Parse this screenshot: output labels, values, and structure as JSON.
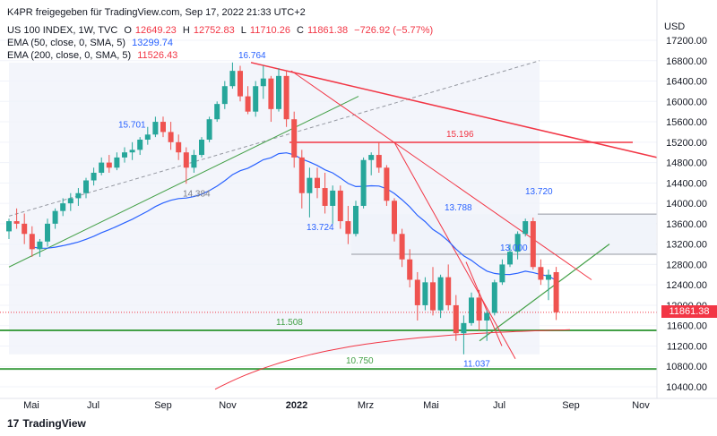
{
  "header": {
    "publisher_line": "K4PR freigegeben für TradingView.com, Sep 17, 2022 21:33 UTC+2",
    "symbol": "US 100 INDEX, 1W, TVC",
    "ohlc": {
      "o_label": "O",
      "o": "12649.23",
      "h_label": "H",
      "h": "12752.83",
      "l_label": "L",
      "l": "11710.26",
      "c_label": "C",
      "c": "11861.38",
      "change": "−726.92 (−5.77%)"
    },
    "ema50": {
      "label": "EMA (50, close, 0, SMA, 5)",
      "value": "13299.74"
    },
    "ema200": {
      "label": "EMA (200, close, 0, SMA, 5)",
      "value": "11526.43"
    }
  },
  "brand": {
    "logo": "17",
    "name": "TradingView"
  },
  "price_axis": {
    "currency": "USD",
    "labels": [
      "17200.00",
      "16800.00",
      "16400.00",
      "16000.00",
      "15600.00",
      "15200.00",
      "14800.00",
      "14400.00",
      "14000.00",
      "13600.00",
      "13200.00",
      "12800.00",
      "12400.00",
      "12000.00",
      "11600.00",
      "11200.00",
      "10800.00",
      "10400.00"
    ],
    "last_price": "11861.38"
  },
  "time_axis": {
    "labels": [
      "Mai",
      "Jul",
      "Sep",
      "Nov",
      "2022",
      "Mrz",
      "Mai",
      "Jul",
      "Sep",
      "Nov"
    ]
  },
  "annotations": {
    "h1": "16.764",
    "h2": "15.701",
    "h3": "14.384",
    "h4": "15.196",
    "h5": "13.724",
    "h6": "13.788",
    "h7": "13.720",
    "h8": "13.000",
    "h9": "11.508",
    "h10": "11.037",
    "h11": "10.750"
  },
  "colors": {
    "up": "#26a69a",
    "down": "#ef5350",
    "ema50": "#2962ff",
    "ema200": "#f23645",
    "support": "#43a047",
    "resistance": "#f23645"
  },
  "chart_data": {
    "type": "candlestick",
    "symbol": "US 100 INDEX",
    "interval": "1W",
    "y_range": [
      10200,
      17400
    ],
    "candles": [
      [
        13450,
        13700,
        13300,
        13650
      ],
      [
        13650,
        13900,
        13500,
        13600
      ],
      [
        13600,
        13800,
        13200,
        13400
      ],
      [
        13400,
        13550,
        12950,
        13100
      ],
      [
        13100,
        13300,
        12950,
        13250
      ],
      [
        13250,
        13700,
        13150,
        13600
      ],
      [
        13600,
        13900,
        13500,
        13850
      ],
      [
        13850,
        14100,
        13750,
        14000
      ],
      [
        14000,
        14200,
        13850,
        14100
      ],
      [
        14100,
        14300,
        13950,
        14200
      ],
      [
        14200,
        14500,
        14100,
        14450
      ],
      [
        14450,
        14700,
        14350,
        14600
      ],
      [
        14600,
        14900,
        14550,
        14800
      ],
      [
        14800,
        14950,
        14600,
        14700
      ],
      [
        14700,
        15000,
        14650,
        14900
      ],
      [
        14900,
        15100,
        14800,
        15000
      ],
      [
        15000,
        15200,
        14850,
        15050
      ],
      [
        15050,
        15300,
        14950,
        15250
      ],
      [
        15250,
        15500,
        15150,
        15350
      ],
      [
        15350,
        15700,
        15300,
        15600
      ],
      [
        15600,
        15701,
        15300,
        15400
      ],
      [
        15400,
        15600,
        15050,
        15200
      ],
      [
        15200,
        15350,
        14850,
        15000
      ],
      [
        15000,
        15100,
        14384,
        14700
      ],
      [
        14700,
        15050,
        14600,
        14950
      ],
      [
        14950,
        15300,
        14900,
        15250
      ],
      [
        15250,
        15700,
        15200,
        15650
      ],
      [
        15650,
        16000,
        15600,
        15950
      ],
      [
        15950,
        16400,
        15850,
        16300
      ],
      [
        16300,
        16764,
        16250,
        16600
      ],
      [
        16600,
        16700,
        16000,
        16100
      ],
      [
        16100,
        16300,
        15750,
        15800
      ],
      [
        15800,
        16400,
        15700,
        16300
      ],
      [
        16300,
        16700,
        16050,
        16450
      ],
      [
        16450,
        16500,
        15600,
        15850
      ],
      [
        15850,
        16650,
        15800,
        16500
      ],
      [
        16500,
        16600,
        15500,
        15650
      ],
      [
        15650,
        15800,
        14700,
        14900
      ],
      [
        14900,
        15050,
        13900,
        14200
      ],
      [
        14200,
        14700,
        13724,
        14500
      ],
      [
        14500,
        14700,
        14100,
        14300
      ],
      [
        14300,
        14600,
        13800,
        13950
      ],
      [
        13950,
        14350,
        13600,
        14250
      ],
      [
        14250,
        14350,
        13500,
        13650
      ],
      [
        13650,
        13950,
        13200,
        13400
      ],
      [
        13400,
        14050,
        13350,
        13950
      ],
      [
        13950,
        14900,
        13900,
        14850
      ],
      [
        14850,
        15000,
        14550,
        14950
      ],
      [
        14950,
        15196,
        14600,
        14700
      ],
      [
        14700,
        14750,
        13950,
        14050
      ],
      [
        14050,
        14100,
        13250,
        13400
      ],
      [
        13400,
        13500,
        12750,
        12900
      ],
      [
        12900,
        13100,
        12350,
        12500
      ],
      [
        12500,
        12650,
        11700,
        12000
      ],
      [
        12000,
        12550,
        11900,
        12450
      ],
      [
        12450,
        12750,
        11800,
        11900
      ],
      [
        11900,
        12600,
        11750,
        12550
      ],
      [
        12550,
        12800,
        11900,
        12000
      ],
      [
        12000,
        12200,
        11300,
        11450
      ],
      [
        11450,
        11800,
        11037,
        11650
      ],
      [
        11650,
        12250,
        11600,
        12150
      ],
      [
        12150,
        12300,
        11500,
        11700
      ],
      [
        11700,
        11900,
        11300,
        11850
      ],
      [
        11850,
        12500,
        11800,
        12450
      ],
      [
        12450,
        12900,
        12400,
        12800
      ],
      [
        12800,
        13200,
        12750,
        13050
      ],
      [
        13050,
        13450,
        12900,
        13400
      ],
      [
        13400,
        13700,
        13350,
        13650
      ],
      [
        13650,
        13720,
        12700,
        12750
      ],
      [
        12750,
        12900,
        12400,
        12500
      ],
      [
        12500,
        12700,
        12100,
        12600
      ],
      [
        12649.23,
        12752.83,
        11710.26,
        11861.38
      ]
    ]
  }
}
